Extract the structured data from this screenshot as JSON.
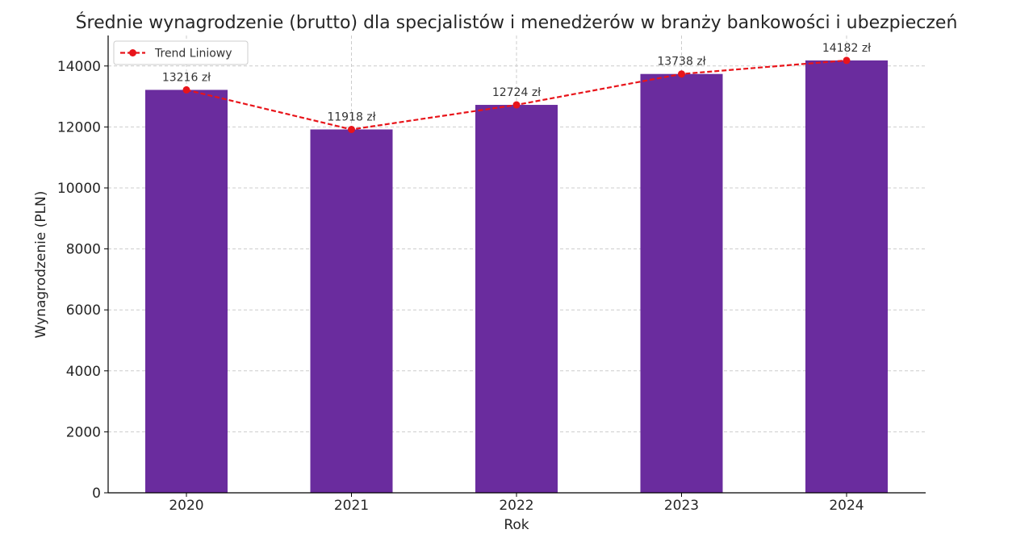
{
  "chart_data": {
    "type": "bar",
    "title": "Średnie wynagrodzenie (brutto) dla specjalistów i menedżerów w branży bankowości i ubezpieczeń",
    "xlabel": "Rok",
    "ylabel": "Wynagrodzenie (PLN)",
    "categories": [
      "2020",
      "2021",
      "2022",
      "2023",
      "2024"
    ],
    "values": [
      13216,
      11918,
      12724,
      13738,
      14182
    ],
    "value_labels": [
      "13216 zł",
      "11918 zł",
      "12724 zł",
      "13738 zł",
      "14182 zł"
    ],
    "ylim": [
      0,
      15000
    ],
    "yticks": [
      0,
      2000,
      4000,
      6000,
      8000,
      10000,
      12000,
      14000
    ],
    "grid": true,
    "legend_position": "top-left",
    "series": [
      {
        "name": "Trend Liniowy",
        "type": "line",
        "style": "dashed",
        "marker": "circle",
        "values": [
          13216,
          11918,
          12724,
          13738,
          14182
        ]
      }
    ],
    "colors": {
      "bar": "#6a2c9e",
      "trend": "#e8141a"
    }
  }
}
